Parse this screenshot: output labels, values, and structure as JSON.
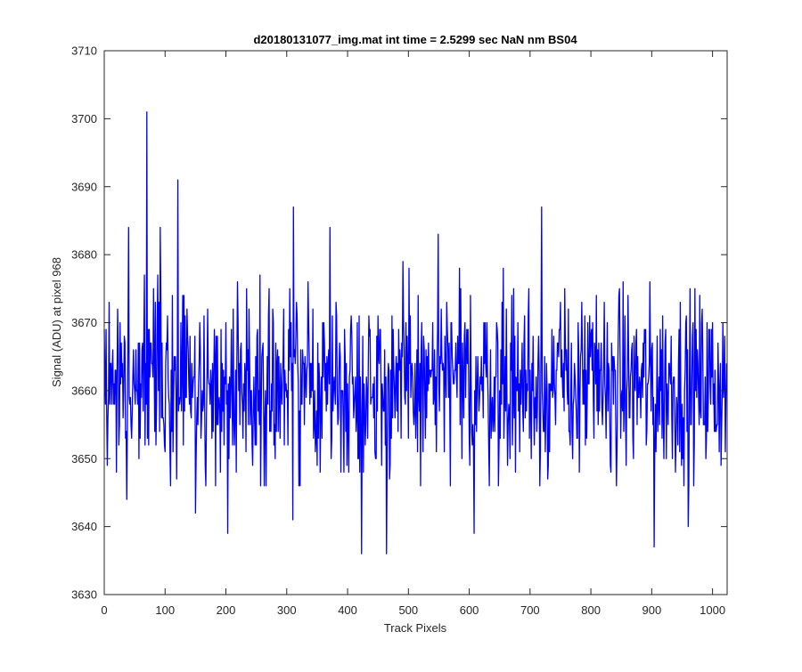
{
  "chart_data": {
    "type": "line",
    "title": "d20180131077_img.mat int time = 2.5299 sec  NaN nm BS04",
    "xlabel": "Track Pixels",
    "ylabel": "Signal (ADU) at pixel 968",
    "xlim": [
      0,
      1024
    ],
    "ylim": [
      3630,
      3710
    ],
    "xticks": [
      0,
      100,
      200,
      300,
      400,
      500,
      600,
      700,
      800,
      900,
      1000
    ],
    "yticks": [
      3630,
      3640,
      3650,
      3660,
      3670,
      3680,
      3690,
      3700,
      3710
    ],
    "grid": false,
    "legend": "none",
    "colors": {
      "series": "#0000ff",
      "axes": "#262626",
      "background": "#ffffff"
    },
    "series": [
      {
        "color": "#0000ff",
        "noise": {
          "n_points": 1024,
          "mean": 3661,
          "min": 3636,
          "max": 3701
        },
        "peaks": [
          {
            "x": 70,
            "y": 3701
          },
          {
            "x": 121,
            "y": 3691
          },
          {
            "x": 40,
            "y": 3684
          },
          {
            "x": 92,
            "y": 3684
          },
          {
            "x": 311,
            "y": 3687
          },
          {
            "x": 719,
            "y": 3687
          },
          {
            "x": 371,
            "y": 3684
          },
          {
            "x": 549,
            "y": 3683
          },
          {
            "x": 423,
            "y": 3636
          },
          {
            "x": 464,
            "y": 3636
          },
          {
            "x": 904,
            "y": 3637
          },
          {
            "x": 203,
            "y": 3639
          },
          {
            "x": 608,
            "y": 3639
          },
          {
            "x": 960,
            "y": 3640
          },
          {
            "x": 310,
            "y": 3641
          },
          {
            "x": 150,
            "y": 3642
          },
          {
            "x": 37,
            "y": 3644
          }
        ]
      }
    ]
  }
}
